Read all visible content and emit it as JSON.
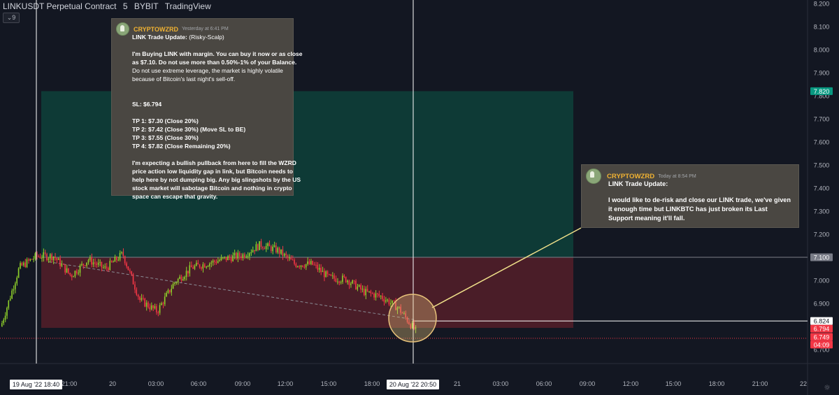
{
  "header": {
    "symbol": "LINKUSDT Perpetual Contract",
    "interval": "5",
    "exchange": "BYBIT",
    "platform": "TradingView",
    "indicator_count": "9"
  },
  "chart_data": {
    "type": "candlestick",
    "y_axis": {
      "min": 6.7,
      "max": 8.2,
      "ticks": [
        "8.200",
        "8.100",
        "8.000",
        "7.900",
        "7.800",
        "7.700",
        "7.600",
        "7.500",
        "7.400",
        "7.300",
        "7.200",
        "7.100",
        "7.000",
        "6.900",
        "6.800",
        "6.700"
      ]
    },
    "x_axis": {
      "ticks": [
        "21:00",
        "20",
        "03:00",
        "06:00",
        "09:00",
        "12:00",
        "15:00",
        "18:00",
        "21",
        "03:00",
        "06:00",
        "09:00",
        "12:00",
        "15:00",
        "18:00",
        "21:00",
        "22"
      ],
      "crosshair_labels": [
        "19 Aug '22   18:40",
        "20 Aug '22   20:50"
      ]
    },
    "price_labels": [
      {
        "value": "7.820",
        "color": "#089981"
      },
      {
        "value": "7.100",
        "color": "#787b86"
      },
      {
        "value": "6.824",
        "color": "#ffffff"
      },
      {
        "value": "6.794",
        "color": "#f23645"
      },
      {
        "value": "6.749",
        "color": "#f23645"
      },
      {
        "value": "04:09",
        "color": "#f23645"
      }
    ],
    "position": {
      "entry": 7.1,
      "target": 7.82,
      "stop": 6.794
    },
    "price_path": [
      [
        6.8,
        6.83
      ],
      [
        6.91,
        7.2
      ],
      [
        7.13,
        7.08
      ],
      [
        7.08,
        7.13
      ],
      [
        7.08,
        6.96
      ],
      [
        7.05,
        7.13
      ],
      [
        7.08,
        7.02
      ],
      [
        7.13,
        7.1
      ],
      [
        6.96,
        6.87
      ],
      [
        6.83,
        6.9
      ],
      [
        6.93,
        7.05
      ],
      [
        7.03,
        7.08
      ],
      [
        7.06,
        7.09
      ],
      [
        7.11,
        7.08
      ],
      [
        7.08,
        7.14
      ],
      [
        7.12,
        7.19
      ],
      [
        7.16,
        7.1
      ],
      [
        7.09,
        7.05
      ],
      [
        7.06,
        7.08
      ],
      [
        7.03,
        6.99
      ],
      [
        6.99,
        7.02
      ],
      [
        6.97,
        6.93
      ],
      [
        6.91,
        6.95
      ],
      [
        6.9,
        6.86
      ],
      [
        6.8,
        6.76
      ]
    ]
  },
  "messages": [
    {
      "author": "CRYPTOWZRD",
      "timestamp": "Yesterday at 6:41 PM",
      "title_bold": "LINK Trade Update:",
      "title_rest": " (Risky-Scalp)",
      "p1_bold": [
        "I'm Buying LINK with margin. You can buy it now or as close",
        "as $7.10. Do not use more than 0.50%-1% of your Balance."
      ],
      "p1_normal": [
        "Do not use extreme leverage, the market is highly volatile",
        "because of Bitcoin's last night's sell-off."
      ],
      "sl": "SL: $6.794",
      "tps": [
        "TP 1: $7.30 (Close 20%)",
        "TP 2: $7.42 (Close 30%) (Move SL to BE)",
        "TP 3: $7.55 (Close 30%)",
        "TP 4: $7.82 (Close Remaining 20%)"
      ],
      "p3": [
        "I'm expecting a bullish pullback from here to fill the WZRD",
        "price action low liquidity gap in link, but Bitcoin needs to",
        "help here by not dumping big. Any big slingshots by the US",
        "stock market will sabotage Bitcoin and nothing in crypto",
        "space can escape that gravity."
      ]
    },
    {
      "author": "CRYPTOWZRD",
      "timestamp": "Today at 8:54 PM",
      "title_bold": "LINK Trade Update:",
      "body": [
        "I would like to de-risk and close our LINK trade, we've given",
        "it enough time but LINKBTC has just broken its Last",
        "Support meaning it'll fall."
      ]
    }
  ],
  "colors": {
    "background": "#131722",
    "up": "#8fd12a",
    "down": "#f23645",
    "profit_zone": "#0e3a36",
    "loss_zone": "#4a1d28",
    "highlight_circle": "#e8c27a"
  }
}
